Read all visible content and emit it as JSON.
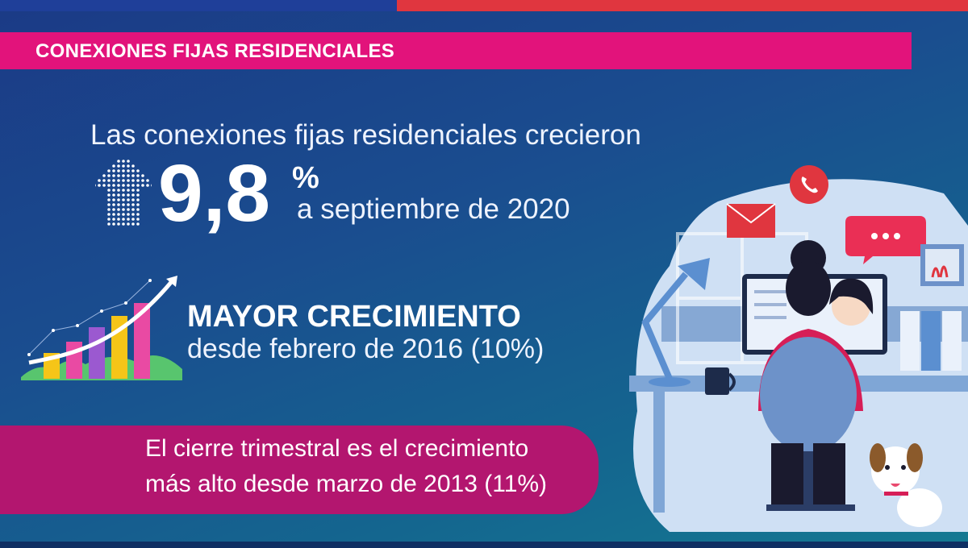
{
  "header": {
    "title": "CONEXIONES FIJAS RESIDENCIALES"
  },
  "headline": {
    "lead": "Las conexiones fijas residenciales crecieron",
    "value": "9,8",
    "unit": "%",
    "period": "a septiembre de 2020"
  },
  "growth": {
    "title": "MAYOR CRECIMIENTO",
    "subtitle": "desde febrero de 2016 (10%)"
  },
  "callout": {
    "line1": "El cierre trimestral es el crecimiento",
    "line2": "más alto desde marzo de 2013 (11%)"
  },
  "colors": {
    "accent_pink": "#e2137b",
    "accent_red": "#e0363f",
    "callout_bg": "#b3166f",
    "background": "#1b3a86"
  },
  "icons": [
    "dotted-up-arrow-icon",
    "bar-chart-growth-icon",
    "phone-icon",
    "mail-icon",
    "chat-bubble-icon",
    "person-at-desk-illustration",
    "dog-illustration"
  ]
}
